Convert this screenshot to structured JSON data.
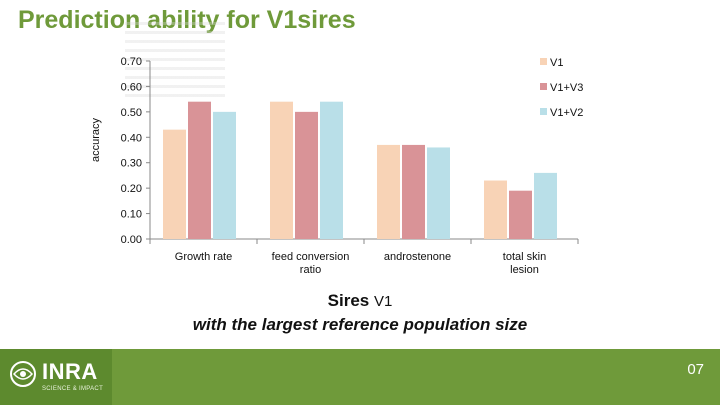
{
  "slide": {
    "title": "Prediction ability for V1sires",
    "caption_main": "Sires ",
    "caption_sub": "V1",
    "caption_line2": "with the largest reference population size",
    "page_number": "07",
    "logo_text": "INRA",
    "logo_tagline": "SCIENCE & IMPACT"
  },
  "colors": {
    "title": "#6f9a3a",
    "footer": "#6f9a3a",
    "V1": "#f8d3b6",
    "V1+V3": "#d99397",
    "V1+V2": "#b9dfe8"
  },
  "chart_data": {
    "type": "bar",
    "ylabel": "accuracy",
    "xlabel": "",
    "ylim": [
      0,
      0.7
    ],
    "yticks": [
      "0.00",
      "0.10",
      "0.20",
      "0.30",
      "0.40",
      "0.50",
      "0.60",
      "0.70"
    ],
    "categories": [
      "Growth rate",
      "feed conversion ratio",
      "androstenone",
      "total skin lesion"
    ],
    "series": [
      {
        "name": "V1",
        "values": [
          0.43,
          0.54,
          0.37,
          0.23
        ]
      },
      {
        "name": "V1+V3",
        "values": [
          0.54,
          0.5,
          0.37,
          0.19
        ]
      },
      {
        "name": "V1+V2",
        "values": [
          0.5,
          0.54,
          0.36,
          0.26
        ]
      }
    ],
    "legend_position": "top-right",
    "grid": false
  }
}
